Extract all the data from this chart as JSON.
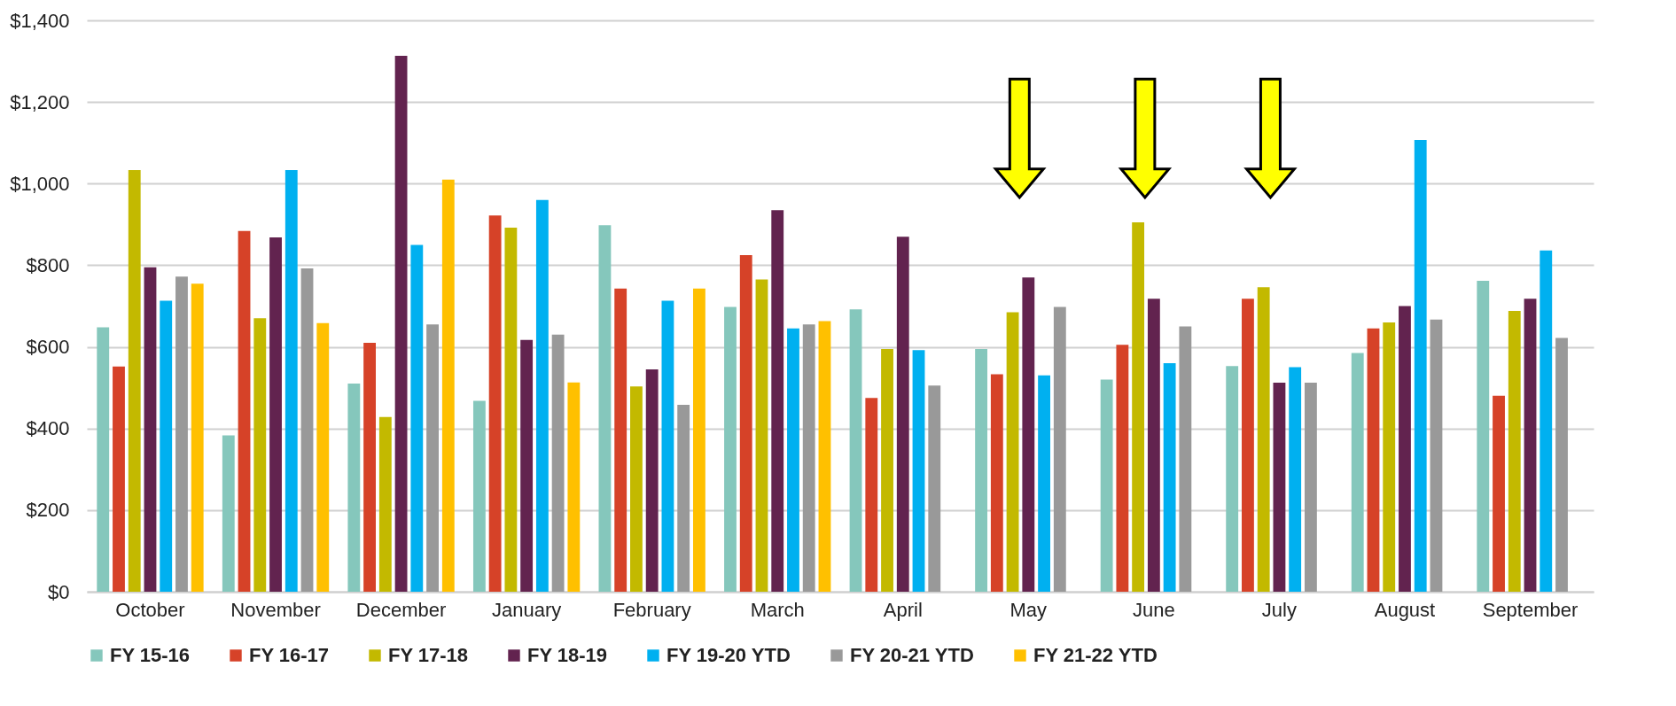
{
  "chart_data": {
    "type": "bar",
    "categories": [
      "October",
      "November",
      "December",
      "January",
      "February",
      "March",
      "April",
      "May",
      "June",
      "July",
      "August",
      "September"
    ],
    "series": [
      {
        "name": "FY 15-16",
        "color": "#85c7bc",
        "values": [
          648,
          383,
          510,
          468,
          898,
          698,
          692,
          595,
          520,
          553,
          585,
          762
        ]
      },
      {
        "name": "FY 16-17",
        "color": "#d64228",
        "values": [
          552,
          884,
          610,
          922,
          743,
          825,
          475,
          533,
          605,
          718,
          645,
          480
        ]
      },
      {
        "name": "FY 17-18",
        "color": "#c3b900",
        "values": [
          1033,
          670,
          428,
          892,
          503,
          765,
          595,
          685,
          905,
          746,
          660,
          688
        ]
      },
      {
        "name": "FY 18-19",
        "color": "#62234f",
        "values": [
          795,
          868,
          1313,
          617,
          545,
          935,
          870,
          770,
          718,
          512,
          700,
          718
        ]
      },
      {
        "name": "FY 19-20 YTD",
        "color": "#00b0f0",
        "values": [
          713,
          1033,
          850,
          960,
          713,
          645,
          592,
          530,
          560,
          550,
          1107,
          836
        ]
      },
      {
        "name": "FY 20-21 YTD",
        "color": "#999999",
        "values": [
          772,
          792,
          655,
          630,
          458,
          655,
          505,
          698,
          650,
          512,
          667,
          622
        ]
      },
      {
        "name": "FY 21-22 YTD",
        "color": "#ffc000",
        "values": [
          755,
          658,
          1010,
          513,
          743,
          663,
          null,
          null,
          null,
          null,
          null,
          null
        ]
      }
    ],
    "ylim": [
      0,
      1400
    ],
    "yticks": [
      {
        "value": 0,
        "label": "$0"
      },
      {
        "value": 200,
        "label": "$200"
      },
      {
        "value": 400,
        "label": "$400"
      },
      {
        "value": 600,
        "label": "$600"
      },
      {
        "value": 800,
        "label": "$800"
      },
      {
        "value": 1000,
        "label": "$1,000"
      },
      {
        "value": 1200,
        "label": "$1,200"
      },
      {
        "value": 1400,
        "label": "$1,400"
      }
    ],
    "grid": "y",
    "legend": "bottom"
  }
}
